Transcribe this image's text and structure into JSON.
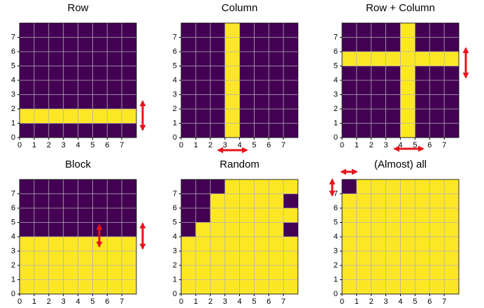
{
  "chart_data": [
    {
      "type": "heatmap",
      "title": "Row",
      "colors": [
        "#440154",
        "#fde725"
      ],
      "grid": true,
      "xlim": [
        0,
        8
      ],
      "ylim": [
        0,
        8
      ],
      "xticks": [
        0,
        1,
        2,
        3,
        4,
        5,
        6,
        7
      ],
      "yticks": [
        0,
        1,
        2,
        3,
        4,
        5,
        6,
        7
      ],
      "z": [
        [
          0,
          0,
          0,
          0,
          0,
          0,
          0,
          0
        ],
        [
          1,
          1,
          1,
          1,
          1,
          1,
          1,
          1
        ],
        [
          0,
          0,
          0,
          0,
          0,
          0,
          0,
          0
        ],
        [
          0,
          0,
          0,
          0,
          0,
          0,
          0,
          0
        ],
        [
          0,
          0,
          0,
          0,
          0,
          0,
          0,
          0
        ],
        [
          0,
          0,
          0,
          0,
          0,
          0,
          0,
          0
        ],
        [
          0,
          0,
          0,
          0,
          0,
          0,
          0,
          0
        ],
        [
          0,
          0,
          0,
          0,
          0,
          0,
          0,
          0
        ]
      ]
    },
    {
      "type": "heatmap",
      "title": "Column",
      "colors": [
        "#440154",
        "#fde725"
      ],
      "grid": true,
      "xlim": [
        0,
        8
      ],
      "ylim": [
        0,
        8
      ],
      "xticks": [
        0,
        1,
        2,
        3,
        4,
        5,
        6,
        7
      ],
      "yticks": [
        0,
        1,
        2,
        3,
        4,
        5,
        6,
        7
      ],
      "z": [
        [
          0,
          0,
          0,
          1,
          0,
          0,
          0,
          0
        ],
        [
          0,
          0,
          0,
          1,
          0,
          0,
          0,
          0
        ],
        [
          0,
          0,
          0,
          1,
          0,
          0,
          0,
          0
        ],
        [
          0,
          0,
          0,
          1,
          0,
          0,
          0,
          0
        ],
        [
          0,
          0,
          0,
          1,
          0,
          0,
          0,
          0
        ],
        [
          0,
          0,
          0,
          1,
          0,
          0,
          0,
          0
        ],
        [
          0,
          0,
          0,
          1,
          0,
          0,
          0,
          0
        ],
        [
          0,
          0,
          0,
          1,
          0,
          0,
          0,
          0
        ]
      ]
    },
    {
      "type": "heatmap",
      "title": "Row + Column",
      "colors": [
        "#440154",
        "#fde725"
      ],
      "grid": true,
      "xlim": [
        0,
        8
      ],
      "ylim": [
        0,
        8
      ],
      "xticks": [
        0,
        1,
        2,
        3,
        4,
        5,
        6,
        7
      ],
      "yticks": [
        0,
        1,
        2,
        3,
        4,
        5,
        6,
        7
      ],
      "z": [
        [
          0,
          0,
          0,
          0,
          1,
          0,
          0,
          0
        ],
        [
          0,
          0,
          0,
          0,
          1,
          0,
          0,
          0
        ],
        [
          0,
          0,
          0,
          0,
          1,
          0,
          0,
          0
        ],
        [
          0,
          0,
          0,
          0,
          1,
          0,
          0,
          0
        ],
        [
          0,
          0,
          0,
          0,
          1,
          0,
          0,
          0
        ],
        [
          1,
          1,
          1,
          1,
          1,
          1,
          1,
          1
        ],
        [
          0,
          0,
          0,
          0,
          1,
          0,
          0,
          0
        ],
        [
          0,
          0,
          0,
          0,
          1,
          0,
          0,
          0
        ]
      ]
    },
    {
      "type": "heatmap",
      "title": "Block",
      "colors": [
        "#440154",
        "#fde725"
      ],
      "grid": true,
      "xlim": [
        0,
        8
      ],
      "ylim": [
        0,
        8
      ],
      "xticks": [
        0,
        1,
        2,
        3,
        4,
        5,
        6,
        7
      ],
      "yticks": [
        0,
        1,
        2,
        3,
        4,
        5,
        6,
        7
      ],
      "z": [
        [
          1,
          1,
          1,
          1,
          1,
          1,
          1,
          1
        ],
        [
          1,
          1,
          1,
          1,
          1,
          1,
          1,
          1
        ],
        [
          1,
          1,
          1,
          1,
          1,
          1,
          1,
          1
        ],
        [
          1,
          1,
          1,
          1,
          1,
          1,
          1,
          1
        ],
        [
          0,
          0,
          0,
          0,
          0,
          0,
          0,
          0
        ],
        [
          0,
          0,
          0,
          0,
          0,
          0,
          0,
          0
        ],
        [
          0,
          0,
          0,
          0,
          0,
          0,
          0,
          0
        ],
        [
          0,
          0,
          0,
          0,
          0,
          0,
          0,
          0
        ]
      ]
    },
    {
      "type": "heatmap",
      "title": "Random",
      "colors": [
        "#440154",
        "#fde725"
      ],
      "grid": true,
      "xlim": [
        0,
        8
      ],
      "ylim": [
        0,
        8
      ],
      "xticks": [
        0,
        1,
        2,
        3,
        4,
        5,
        6,
        7
      ],
      "yticks": [
        0,
        1,
        2,
        3,
        4,
        5,
        6,
        7
      ],
      "z": [
        [
          1,
          1,
          1,
          1,
          1,
          1,
          1,
          1
        ],
        [
          1,
          1,
          1,
          1,
          1,
          1,
          1,
          1
        ],
        [
          1,
          1,
          1,
          1,
          1,
          1,
          1,
          1
        ],
        [
          1,
          1,
          1,
          1,
          1,
          1,
          1,
          1
        ],
        [
          0,
          1,
          1,
          1,
          1,
          1,
          1,
          0
        ],
        [
          0,
          0,
          1,
          1,
          1,
          1,
          1,
          1
        ],
        [
          0,
          0,
          1,
          1,
          1,
          1,
          1,
          0
        ],
        [
          0,
          0,
          0,
          1,
          1,
          1,
          1,
          1
        ]
      ]
    },
    {
      "type": "heatmap",
      "title": "(Almost) all",
      "colors": [
        "#440154",
        "#fde725"
      ],
      "grid": true,
      "xlim": [
        0,
        8
      ],
      "ylim": [
        0,
        8
      ],
      "xticks": [
        0,
        1,
        2,
        3,
        4,
        5,
        6,
        7
      ],
      "yticks": [
        0,
        1,
        2,
        3,
        4,
        5,
        6,
        7
      ],
      "z": [
        [
          1,
          1,
          1,
          1,
          1,
          1,
          1,
          1
        ],
        [
          1,
          1,
          1,
          1,
          1,
          1,
          1,
          1
        ],
        [
          1,
          1,
          1,
          1,
          1,
          1,
          1,
          1
        ],
        [
          1,
          1,
          1,
          1,
          1,
          1,
          1,
          1
        ],
        [
          1,
          1,
          1,
          1,
          1,
          1,
          1,
          1
        ],
        [
          1,
          1,
          1,
          1,
          1,
          1,
          1,
          1
        ],
        [
          1,
          1,
          1,
          1,
          1,
          1,
          1,
          1
        ],
        [
          0,
          1,
          1,
          1,
          1,
          1,
          1,
          1
        ]
      ]
    }
  ]
}
